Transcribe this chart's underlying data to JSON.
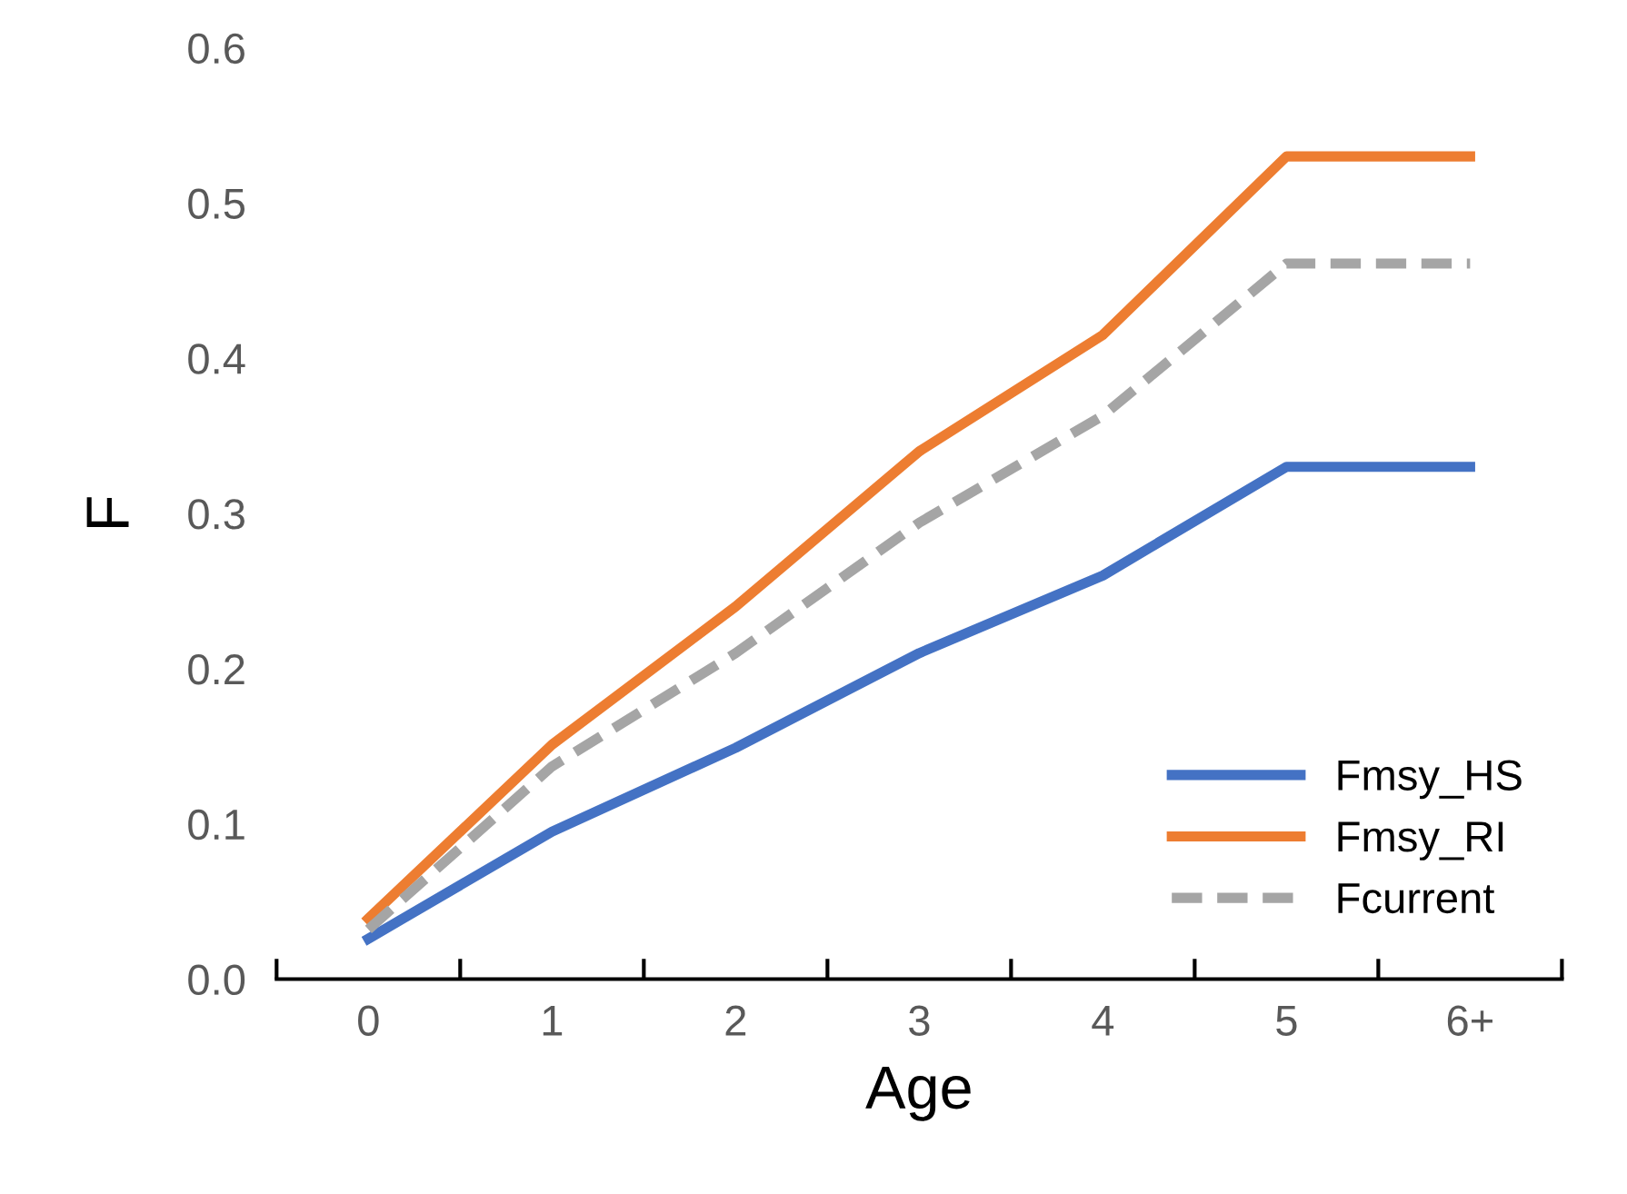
{
  "chart_data": {
    "type": "line",
    "xlabel": "Age",
    "ylabel": "F",
    "categories": [
      "0",
      "1",
      "2",
      "3",
      "4",
      "5",
      "6+"
    ],
    "series": [
      {
        "name": "Fmsy_HS",
        "color": "#4472c4",
        "line_style": "solid",
        "values": [
          0.026,
          0.095,
          0.149,
          0.21,
          0.26,
          0.33,
          0.33
        ]
      },
      {
        "name": "Fmsy_RI",
        "color": "#ed7d31",
        "line_style": "solid",
        "values": [
          0.039,
          0.151,
          0.24,
          0.34,
          0.415,
          0.53,
          0.53
        ]
      },
      {
        "name": "Fcurrent",
        "color": "#a5a5a5",
        "line_style": "dashed",
        "values": [
          0.032,
          0.137,
          0.21,
          0.294,
          0.363,
          0.461,
          0.461
        ]
      }
    ],
    "ylim": [
      0,
      0.6
    ],
    "yticks": [
      {
        "value": 0,
        "label": "0.0"
      },
      0.1,
      0.2,
      0.3,
      0.4,
      0.5,
      0.6
    ],
    "grid": false,
    "legend": "bottom right",
    "marker": "none"
  }
}
